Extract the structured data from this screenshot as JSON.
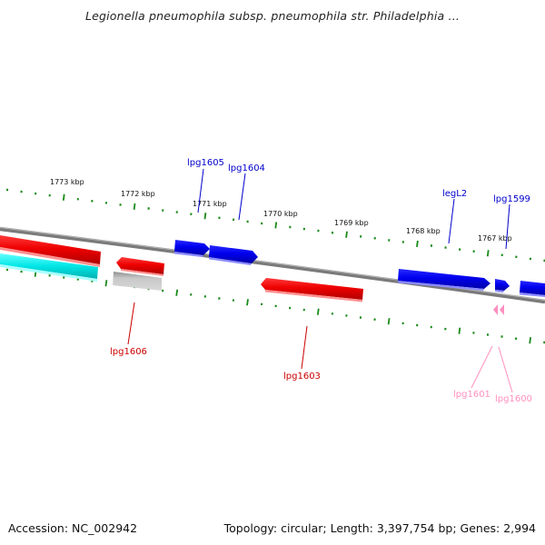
{
  "header": {
    "title": "Legionella pneumophila subsp. pneumophila str. Philadelphia ..."
  },
  "footer": {
    "accession": "Accession: NC_002942",
    "topology": "Topology: circular; Length: 3,397,754 bp; Genes: 2,994"
  },
  "colors": {
    "backbone": "#808080",
    "tick": "#1a8a1a",
    "forward_gene": "#0000ee",
    "reverse_gene": "#ee0000",
    "other_feature": "#00e6e6",
    "pseudo_feature": "#bdbdbd",
    "pink_gene": "#ff8fc0",
    "forward_label": "#0000cc",
    "reverse_label": "#cc0000",
    "pink_label": "#ff8fbf"
  },
  "map": {
    "ticks": [
      "1773 kbp",
      "1772 kbp",
      "1771 kbp",
      "1770 kbp",
      "1769 kbp",
      "1768 kbp",
      "1767 kbp"
    ],
    "genes": [
      "lpg1605",
      "lpg1604",
      "legL2",
      "lpg1599",
      "lpg1606",
      "lpg1603",
      "lpg1601",
      "lpg1600"
    ]
  }
}
